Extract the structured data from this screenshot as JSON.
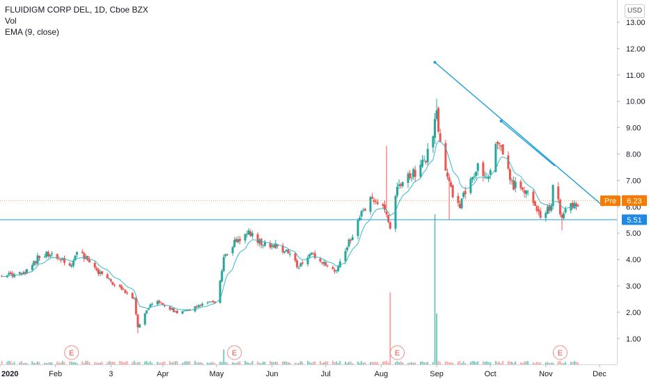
{
  "chart_data": {
    "type": "candlestick",
    "title": "FLUIDIGM CORP DEL, 1D, Cboe BZX",
    "indicators": [
      "Vol",
      "EMA (9, close)"
    ],
    "currency": "USD",
    "ylim": [
      0.2,
      13.3
    ],
    "y_ticks": [
      "13.00",
      "12.00",
      "11.00",
      "10.00",
      "9.00",
      "8.00",
      "7.00",
      "6.00",
      "5.00",
      "4.00",
      "3.00",
      "2.00",
      "1.00"
    ],
    "x_ticks": [
      "2020",
      "Feb",
      "3",
      "Apr",
      "May",
      "Jun",
      "Jul",
      "Aug",
      "Sep",
      "Oct",
      "Nov",
      "Dec"
    ],
    "price_line_last": "6.24",
    "premarket_label": "Pre",
    "premarket_price": "6.23",
    "horizontal_line_price": "5.51",
    "earnings_marker": "E",
    "earnings_dates": [
      "Feb 10",
      "May 11",
      "Aug 10",
      "Nov 09"
    ],
    "trend_lines": [
      {
        "from": {
          "date": "Aug 31",
          "price": 11.48
        },
        "to": {
          "date": "Dec 03",
          "price": 6.03
        }
      },
      {
        "from": {
          "date": "Oct 07",
          "price": 9.25
        },
        "to": {
          "date": "Nov 06",
          "price": 7.55
        }
      }
    ],
    "price_path": [
      {
        "date": "Jan 02",
        "price": 3.4
      },
      {
        "date": "Jan 15",
        "price": 3.45
      },
      {
        "date": "Jan 22",
        "price": 4.05
      },
      {
        "date": "Jan 27",
        "price": 4.25
      },
      {
        "date": "Feb 05",
        "price": 3.95
      },
      {
        "date": "Feb 10",
        "price": 3.8
      },
      {
        "date": "Feb 13",
        "price": 4.3
      },
      {
        "date": "Feb 20",
        "price": 3.9
      },
      {
        "date": "Feb 24",
        "price": 3.6
      },
      {
        "date": "Mar 02",
        "price": 3.2
      },
      {
        "date": "Mar 09",
        "price": 2.9
      },
      {
        "date": "Mar 16",
        "price": 2.5
      },
      {
        "date": "Mar 18",
        "price": 1.4
      },
      {
        "date": "Mar 23",
        "price": 2.05
      },
      {
        "date": "Mar 27",
        "price": 2.45
      },
      {
        "date": "Apr 03",
        "price": 2.2
      },
      {
        "date": "Apr 10",
        "price": 1.95
      },
      {
        "date": "Apr 17",
        "price": 2.1
      },
      {
        "date": "Apr 24",
        "price": 2.4
      },
      {
        "date": "May 01",
        "price": 2.35
      },
      {
        "date": "May 05",
        "price": 4.1
      },
      {
        "date": "May 12",
        "price": 4.7
      },
      {
        "date": "May 19",
        "price": 5.05
      },
      {
        "date": "May 26",
        "price": 4.6
      },
      {
        "date": "Jun 02",
        "price": 4.55
      },
      {
        "date": "Jun 09",
        "price": 4.3
      },
      {
        "date": "Jun 16",
        "price": 3.7
      },
      {
        "date": "Jun 23",
        "price": 4.2
      },
      {
        "date": "Jun 30",
        "price": 3.8
      },
      {
        "date": "Jul 06",
        "price": 3.5
      },
      {
        "date": "Jul 13",
        "price": 4.5
      },
      {
        "date": "Jul 20",
        "price": 5.6
      },
      {
        "date": "Jul 27",
        "price": 6.3
      },
      {
        "date": "Aug 03",
        "price": 5.9
      },
      {
        "date": "Aug 06",
        "price": 5.3
      },
      {
        "date": "Aug 10",
        "price": 6.6
      },
      {
        "date": "Aug 14",
        "price": 7.1
      },
      {
        "date": "Aug 21",
        "price": 7.3
      },
      {
        "date": "Aug 28",
        "price": 8.1
      },
      {
        "date": "Sep 01",
        "price": 9.6
      },
      {
        "date": "Sep 04",
        "price": 7.6
      },
      {
        "date": "Sep 10",
        "price": 6.5
      },
      {
        "date": "Sep 14",
        "price": 5.9
      },
      {
        "date": "Sep 18",
        "price": 6.9
      },
      {
        "date": "Sep 25",
        "price": 7.6
      },
      {
        "date": "Sep 29",
        "price": 7.1
      },
      {
        "date": "Oct 05",
        "price": 8.6
      },
      {
        "date": "Oct 09",
        "price": 7.7
      },
      {
        "date": "Oct 14",
        "price": 6.8
      },
      {
        "date": "Oct 21",
        "price": 6.6
      },
      {
        "date": "Oct 26",
        "price": 6.1
      },
      {
        "date": "Oct 30",
        "price": 5.6
      },
      {
        "date": "Nov 04",
        "price": 6.1
      },
      {
        "date": "Nov 06",
        "price": 7.4
      },
      {
        "date": "Nov 09",
        "price": 5.6
      },
      {
        "date": "Nov 12",
        "price": 5.9
      },
      {
        "date": "Nov 17",
        "price": 6.1
      },
      {
        "date": "Nov 20",
        "price": 6.24
      }
    ],
    "spikes": [
      {
        "date": "Aug 04",
        "high": 8.3
      },
      {
        "date": "Sep 01",
        "high": 10.1
      },
      {
        "date": "Nov 06",
        "high": 7.95
      },
      {
        "date": "Mar 18",
        "low": 1.2
      },
      {
        "date": "Sep 08",
        "low": 5.5
      },
      {
        "date": "Nov 10",
        "low": 5.1
      }
    ],
    "volume_highlights": [
      {
        "date": "Aug 06",
        "relative": 0.24
      },
      {
        "date": "Aug 31",
        "relative": 0.5
      },
      {
        "date": "Sep 01",
        "relative": 0.17
      },
      {
        "date": "May 05",
        "relative": 0.05
      }
    ],
    "colors": {
      "up": "#26a69a",
      "down": "#ef5350",
      "up_volume": "#7dc8bf",
      "down_volume": "#f4a9a7",
      "ema": "#34b8c9",
      "trend": "#1e9fd8",
      "hline": "#1e9fd8",
      "price_line": "#f57c00",
      "pre_label": "#f57c00",
      "last_price_label": "#ef5350",
      "hline_label": "#1e88e5"
    }
  }
}
